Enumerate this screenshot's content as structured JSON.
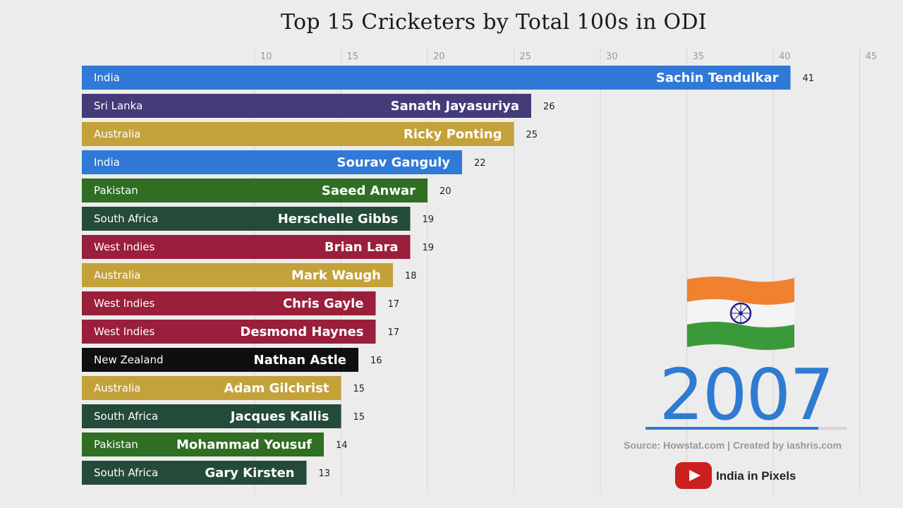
{
  "chart_data": {
    "type": "bar",
    "title": "Top 15 Cricketers by Total 100s in ODI",
    "x_ticks": [
      10,
      15,
      20,
      25,
      30,
      35,
      40,
      45
    ],
    "xlim": [
      0,
      45
    ],
    "grid": true,
    "bars": [
      {
        "name": "Sachin Tendulkar",
        "country": "India",
        "value": 41,
        "color": "#3079d6"
      },
      {
        "name": "Sanath Jayasuriya",
        "country": "Sri Lanka",
        "value": 26,
        "color": "#433c78"
      },
      {
        "name": "Ricky Ponting",
        "country": "Australia",
        "value": 25,
        "color": "#c4a23a"
      },
      {
        "name": "Sourav Ganguly",
        "country": "India",
        "value": 22,
        "color": "#3079d6"
      },
      {
        "name": "Saeed Anwar",
        "country": "Pakistan",
        "value": 20,
        "color": "#2f6e23"
      },
      {
        "name": "Herschelle Gibbs",
        "country": "South Africa",
        "value": 19,
        "color": "#244a3a"
      },
      {
        "name": "Brian Lara",
        "country": "West Indies",
        "value": 19,
        "color": "#9a1f3c"
      },
      {
        "name": "Mark Waugh",
        "country": "Australia",
        "value": 18,
        "color": "#c4a23a"
      },
      {
        "name": "Chris Gayle",
        "country": "West Indies",
        "value": 17,
        "color": "#9a1f3c"
      },
      {
        "name": "Desmond Haynes",
        "country": "West Indies",
        "value": 17,
        "color": "#9a1f3c"
      },
      {
        "name": "Nathan Astle",
        "country": "New Zealand",
        "value": 16,
        "color": "#0f0f0f"
      },
      {
        "name": "Adam Gilchrist",
        "country": "Australia",
        "value": 15,
        "color": "#c4a23a"
      },
      {
        "name": "Jacques Kallis",
        "country": "South Africa",
        "value": 15,
        "color": "#244a3a"
      },
      {
        "name": "Mohammad Yousuf",
        "country": "Pakistan",
        "value": 14,
        "color": "#2f6e23"
      },
      {
        "name": "Gary Kirsten",
        "country": "South Africa",
        "value": 13,
        "color": "#244a3a"
      }
    ]
  },
  "overlay": {
    "year": "2007",
    "progress_fraction": 0.86,
    "source": "Source: Howstat.com | Created by iashris.com",
    "channel": "India in Pixels",
    "flag": "india-flag-icon",
    "colors": {
      "accent": "#2f7bd2",
      "youtube": "#cc1f1f"
    }
  }
}
